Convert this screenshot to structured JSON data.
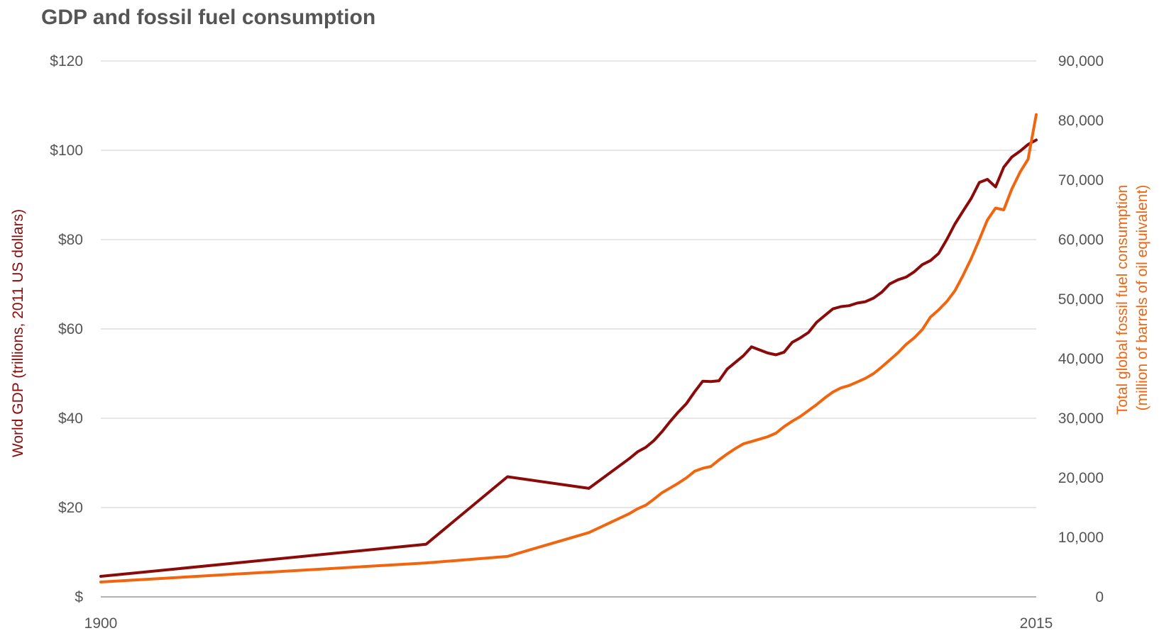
{
  "chart_data": {
    "type": "line",
    "title": "GDP and fossil fuel consumption",
    "ylabel_left": "World GDP (trillions, 2011 US dollars)",
    "ylabel_right_lines": [
      "Total global fossil fuel consumption",
      "(million of barrels of oil equivalent)"
    ],
    "xlim": [
      1900,
      2015
    ],
    "ylim_left": [
      0,
      120
    ],
    "ylim_right": [
      0,
      90000
    ],
    "x_tick_labels": [
      "1900",
      "2015"
    ],
    "y_left_ticks": [
      {
        "value": 0,
        "label": "$"
      },
      {
        "value": 20,
        "label": "$20"
      },
      {
        "value": 40,
        "label": "$40"
      },
      {
        "value": 60,
        "label": "$60"
      },
      {
        "value": 80,
        "label": "$80"
      },
      {
        "value": 100,
        "label": "$100"
      },
      {
        "value": 120,
        "label": "$120"
      }
    ],
    "y_right_ticks": [
      {
        "value": 0,
        "label": "0"
      },
      {
        "value": 10000,
        "label": "10,000"
      },
      {
        "value": 20000,
        "label": "20,000"
      },
      {
        "value": 30000,
        "label": "30,000"
      },
      {
        "value": 40000,
        "label": "40,000"
      },
      {
        "value": 50000,
        "label": "50,000"
      },
      {
        "value": 60000,
        "label": "60,000"
      },
      {
        "value": 70000,
        "label": "70,000"
      },
      {
        "value": 80000,
        "label": "80,000"
      },
      {
        "value": 90000,
        "label": "90,000"
      }
    ],
    "grid": true,
    "series": [
      {
        "axis": "left",
        "color": "#8b0a0a",
        "points": [
          [
            1900,
            4.6
          ],
          [
            1940,
            11.8
          ],
          [
            1950,
            26.9
          ],
          [
            1960,
            24.3
          ],
          [
            1965,
            31.0
          ],
          [
            1966,
            32.5
          ],
          [
            1967,
            33.5
          ],
          [
            1968,
            35.0
          ],
          [
            1969,
            37.0
          ],
          [
            1970,
            39.3
          ],
          [
            1971,
            41.4
          ],
          [
            1972,
            43.3
          ],
          [
            1973,
            45.9
          ],
          [
            1974,
            48.3
          ],
          [
            1975,
            48.2
          ],
          [
            1976,
            48.4
          ],
          [
            1977,
            51.0
          ],
          [
            1978,
            52.5
          ],
          [
            1979,
            54.0
          ],
          [
            1980,
            56.0
          ],
          [
            1981,
            55.3
          ],
          [
            1982,
            54.6
          ],
          [
            1983,
            54.2
          ],
          [
            1984,
            54.8
          ],
          [
            1985,
            57.0
          ],
          [
            1986,
            58.0
          ],
          [
            1987,
            59.2
          ],
          [
            1988,
            61.5
          ],
          [
            1989,
            63.0
          ],
          [
            1990,
            64.5
          ],
          [
            1991,
            65.0
          ],
          [
            1992,
            65.2
          ],
          [
            1993,
            65.8
          ],
          [
            1994,
            66.1
          ],
          [
            1995,
            66.9
          ],
          [
            1996,
            68.2
          ],
          [
            1997,
            70.1
          ],
          [
            1998,
            71.0
          ],
          [
            1999,
            71.6
          ],
          [
            2000,
            72.8
          ],
          [
            2001,
            74.4
          ],
          [
            2002,
            75.3
          ],
          [
            2003,
            76.9
          ],
          [
            2004,
            80.0
          ],
          [
            2005,
            83.5
          ],
          [
            2006,
            86.4
          ],
          [
            2007,
            89.2
          ],
          [
            2008,
            92.8
          ],
          [
            2009,
            93.5
          ],
          [
            2010,
            91.8
          ],
          [
            2011,
            96.2
          ],
          [
            2012,
            98.5
          ],
          [
            2013,
            99.8
          ],
          [
            2014,
            101.3
          ],
          [
            2015,
            102.3
          ]
        ]
      },
      {
        "axis": "right",
        "color": "#f2650f",
        "points": [
          [
            1900,
            2500
          ],
          [
            1940,
            5700
          ],
          [
            1950,
            6800
          ],
          [
            1960,
            10800
          ],
          [
            1965,
            14000
          ],
          [
            1966,
            14800
          ],
          [
            1967,
            15400
          ],
          [
            1968,
            16400
          ],
          [
            1969,
            17500
          ],
          [
            1970,
            18300
          ],
          [
            1971,
            19100
          ],
          [
            1972,
            20000
          ],
          [
            1973,
            21100
          ],
          [
            1974,
            21600
          ],
          [
            1975,
            21900
          ],
          [
            1976,
            23000
          ],
          [
            1977,
            24000
          ],
          [
            1978,
            24900
          ],
          [
            1979,
            25700
          ],
          [
            1980,
            26100
          ],
          [
            1981,
            26500
          ],
          [
            1982,
            26900
          ],
          [
            1983,
            27500
          ],
          [
            1984,
            28600
          ],
          [
            1985,
            29500
          ],
          [
            1986,
            30300
          ],
          [
            1987,
            31300
          ],
          [
            1988,
            32300
          ],
          [
            1989,
            33400
          ],
          [
            1990,
            34400
          ],
          [
            1991,
            35100
          ],
          [
            1992,
            35500
          ],
          [
            1993,
            36100
          ],
          [
            1994,
            36700
          ],
          [
            1995,
            37500
          ],
          [
            1996,
            38600
          ],
          [
            1997,
            39800
          ],
          [
            1998,
            41000
          ],
          [
            1999,
            42400
          ],
          [
            2000,
            43500
          ],
          [
            2001,
            44900
          ],
          [
            2002,
            47000
          ],
          [
            2003,
            48200
          ],
          [
            2004,
            49600
          ],
          [
            2005,
            51400
          ],
          [
            2006,
            54000
          ],
          [
            2007,
            56800
          ],
          [
            2008,
            60000
          ],
          [
            2009,
            63300
          ],
          [
            2010,
            65300
          ],
          [
            2011,
            65000
          ],
          [
            2012,
            68500
          ],
          [
            2013,
            71300
          ],
          [
            2014,
            73500
          ],
          [
            2015,
            81000
          ]
        ]
      }
    ]
  }
}
